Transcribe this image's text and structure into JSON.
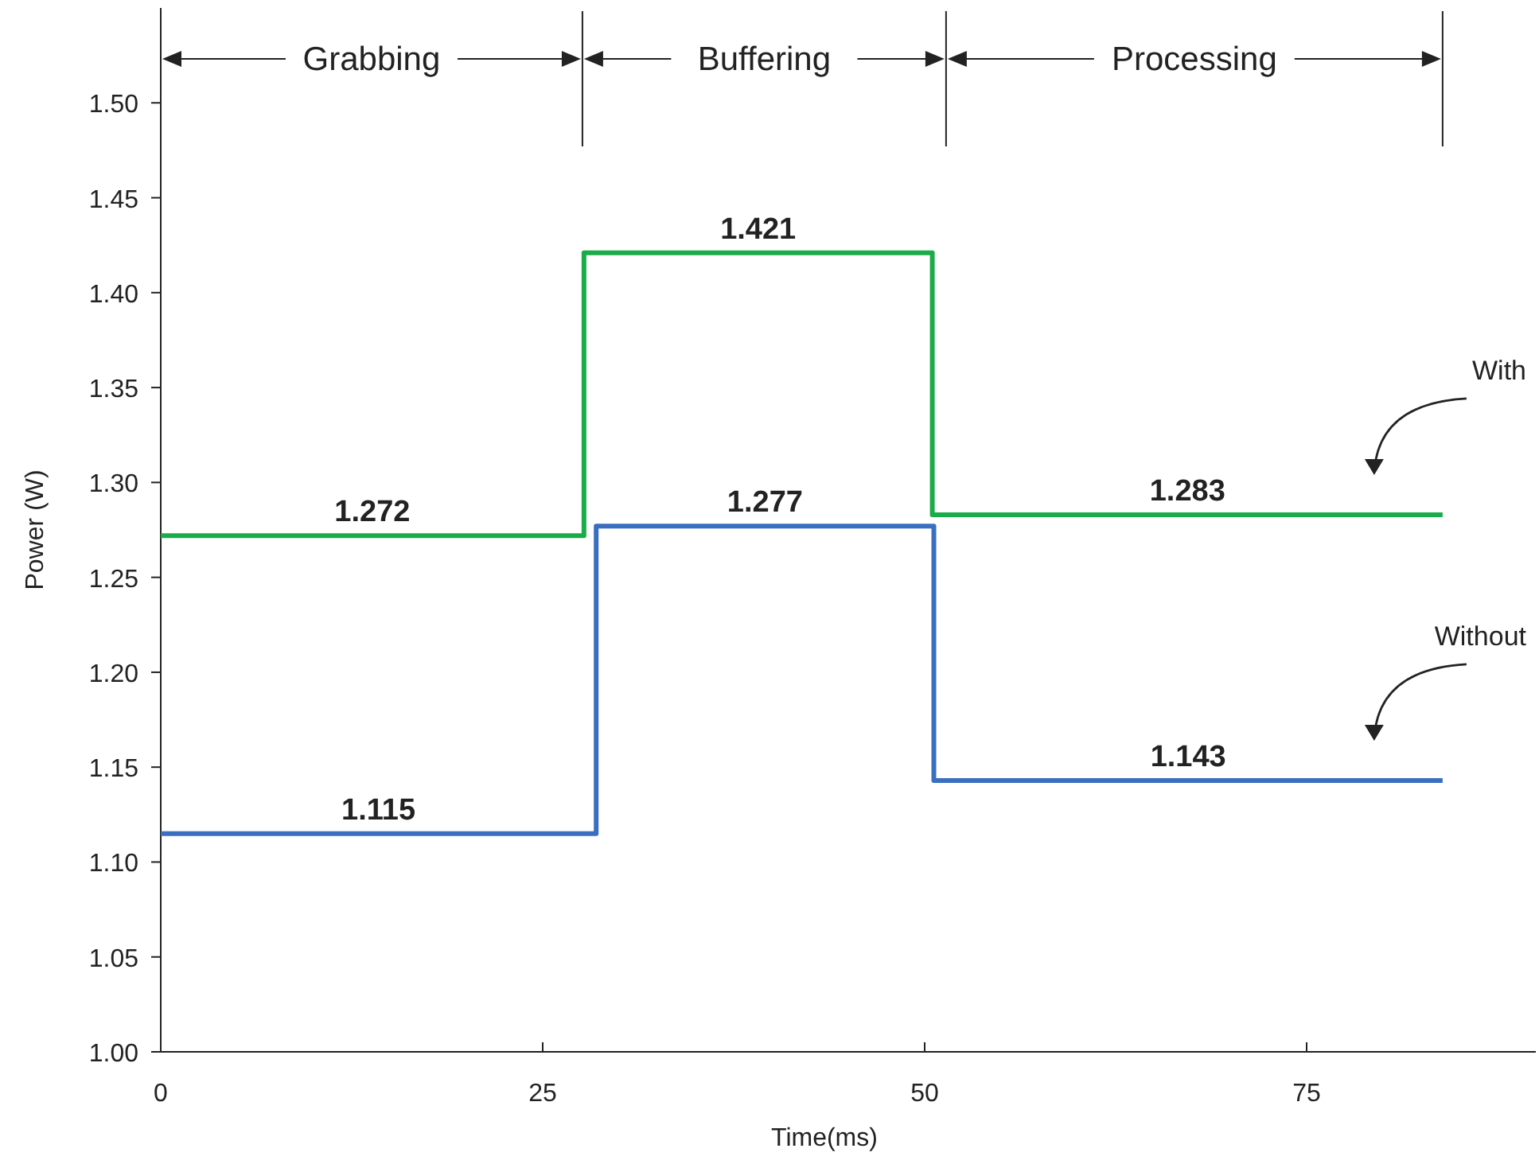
{
  "chart_data": {
    "type": "step",
    "xlabel": "Time(ms)",
    "ylabel": "Power (W)",
    "xlim": [
      0,
      90
    ],
    "xticks": [
      0,
      25,
      50,
      75
    ],
    "ylim": [
      1.0,
      1.55
    ],
    "yticks": [
      {
        "value": 1.0,
        "label": "1.00"
      },
      {
        "value": 1.05,
        "label": "1.05"
      },
      {
        "value": 1.1,
        "label": "1.10"
      },
      {
        "value": 1.15,
        "label": "1.15"
      },
      {
        "value": 1.2,
        "label": "1.20"
      },
      {
        "value": 1.25,
        "label": "1.25"
      },
      {
        "value": 1.3,
        "label": "1.30"
      },
      {
        "value": 1.35,
        "label": "1.35"
      },
      {
        "value": 1.4,
        "label": "1.40"
      },
      {
        "value": 1.45,
        "label": "1.45"
      },
      {
        "value": 1.5,
        "label": "1.50"
      }
    ],
    "series": [
      {
        "name": "With",
        "color": "#1aac4b",
        "x": [
          0,
          27.7,
          50.5,
          83.9
        ],
        "values": [
          1.272,
          1.421,
          1.283,
          1.283
        ]
      },
      {
        "name": "Without",
        "color": "#3a6fc0",
        "x": [
          0,
          28.5,
          50.6,
          83.9
        ],
        "values": [
          1.115,
          1.277,
          1.143,
          1.143
        ]
      }
    ],
    "ref_lines": [
      {
        "axis": "x",
        "value": 27.6
      },
      {
        "axis": "x",
        "value": 51.4
      },
      {
        "axis": "x",
        "value": 83.9
      }
    ],
    "annotations": [
      "Grabbing",
      "Buffering",
      "Processing",
      {
        "text": "1.272",
        "x": 13.85,
        "y": 1.272
      },
      {
        "text": "1.421",
        "x": 39.1,
        "y": 1.421
      },
      {
        "text": "1.283",
        "x": 67.2,
        "y": 1.283
      },
      {
        "text": "1.115",
        "x": 14.25,
        "y": 1.115
      },
      {
        "text": "1.277",
        "x": 39.55,
        "y": 1.277
      },
      {
        "text": "1.143",
        "x": 67.25,
        "y": 1.143
      }
    ],
    "grid": false,
    "marker": "none",
    "line_style": "solid"
  }
}
